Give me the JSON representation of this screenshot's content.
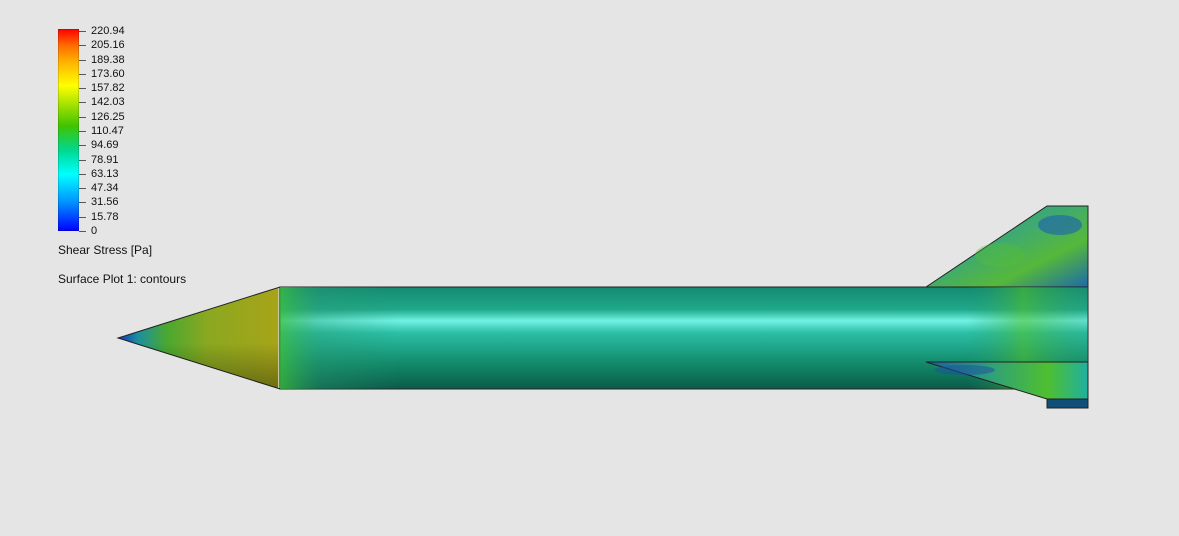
{
  "legend": {
    "labels": [
      "220.94",
      "205.16",
      "189.38",
      "173.60",
      "157.82",
      "142.03",
      "126.25",
      "110.47",
      "94.69",
      "78.91",
      "63.13",
      "47.34",
      "31.56",
      "15.78",
      "0"
    ],
    "quantity": "Shear Stress [Pa]",
    "plot_name": "Surface Plot 1: contours",
    "colors": {
      "max": "#ff0000",
      "high": "#ffff00",
      "mid": "#3fc300",
      "low_mid": "#00ffff",
      "min": "#0000ff"
    }
  },
  "colors": {
    "background": "#e5e5e5",
    "nose": "#9aa21e",
    "body": "#1fa38a",
    "body_highlight": "#6ff0e0",
    "fin": "#2a9a86"
  }
}
